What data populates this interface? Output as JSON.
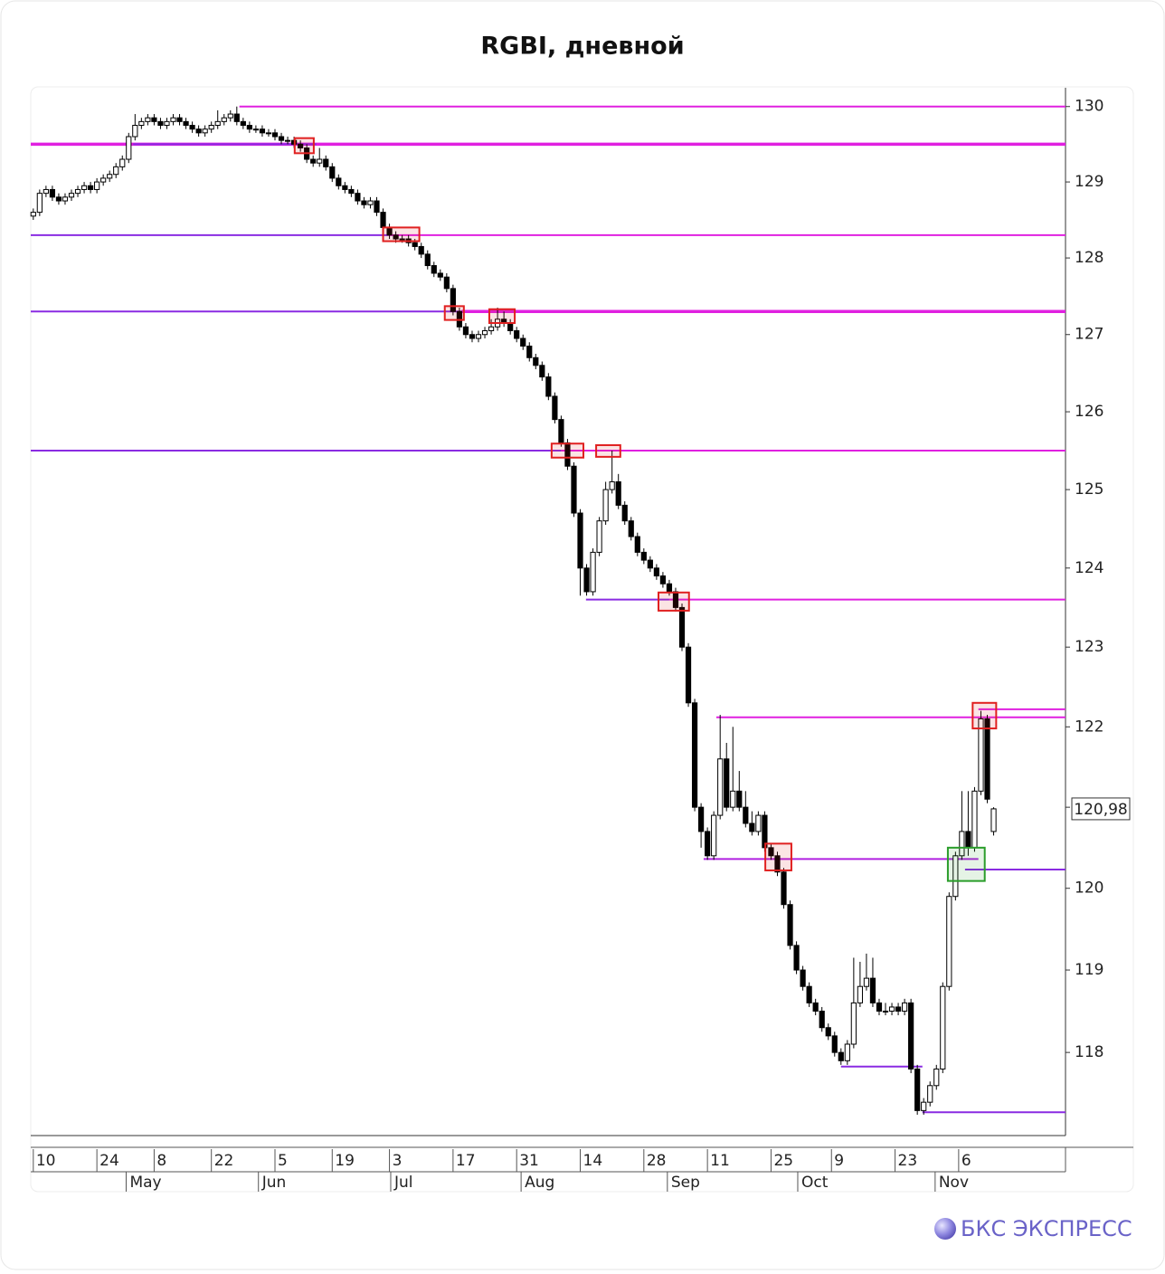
{
  "chart_data": {
    "type": "candlestick",
    "title": "RGBI, дневной",
    "log_scale": true,
    "ylim": [
      117.0,
      130.25
    ],
    "yticks": [
      118,
      119,
      120,
      121,
      122,
      123,
      124,
      125,
      126,
      127,
      128,
      129,
      130
    ],
    "xlim": [
      -0.4,
      162.3
    ],
    "xticks": [
      {
        "value": 0,
        "label": "10"
      },
      {
        "value": 10,
        "label": "24"
      },
      {
        "value": 19,
        "label": "8"
      },
      {
        "value": 28,
        "label": "22"
      },
      {
        "value": 38,
        "label": "5"
      },
      {
        "value": 47,
        "label": "19"
      },
      {
        "value": 56,
        "label": "3"
      },
      {
        "value": 66,
        "label": "17"
      },
      {
        "value": 76,
        "label": "31"
      },
      {
        "value": 86,
        "label": "14"
      },
      {
        "value": 96,
        "label": "28"
      },
      {
        "value": 106,
        "label": "11"
      },
      {
        "value": 116,
        "label": "25"
      },
      {
        "value": 125.5,
        "label": "9"
      },
      {
        "value": 135.5,
        "label": "23"
      },
      {
        "value": 145.5,
        "label": "6"
      }
    ],
    "months": [
      {
        "value": 14.6,
        "label": "May"
      },
      {
        "value": 35.4,
        "label": "Jun"
      },
      {
        "value": 56.2,
        "label": "Jul"
      },
      {
        "value": 76.7,
        "label": "Aug"
      },
      {
        "value": 99.7,
        "label": "Sep"
      },
      {
        "value": 120.2,
        "label": "Oct"
      },
      {
        "value": 141.8,
        "label": "Nov"
      }
    ],
    "up_color": "#ffffff",
    "down_color": "#000000",
    "candles": {
      "x": [
        0,
        1,
        2,
        3,
        4,
        5,
        6,
        7,
        8,
        9,
        10,
        11,
        12,
        13,
        14,
        15,
        16,
        17,
        18,
        19,
        20,
        21,
        22,
        23,
        24,
        25,
        26,
        27,
        28,
        29,
        30,
        31,
        32,
        33,
        34,
        35,
        36,
        37,
        38,
        39,
        40,
        41,
        42,
        43,
        44,
        45,
        46,
        47,
        48,
        49,
        50,
        51,
        52,
        53,
        54,
        55,
        56,
        57,
        58,
        59,
        60,
        61,
        62,
        63,
        64,
        65,
        66,
        67,
        68,
        69,
        70,
        71,
        72,
        73,
        74,
        75,
        76,
        77,
        78,
        79,
        80,
        81,
        82,
        83,
        84,
        85,
        86,
        87,
        88,
        89,
        90,
        91,
        92,
        93,
        94,
        95,
        96,
        97,
        98,
        99,
        100,
        101,
        102,
        103,
        104,
        105,
        106,
        107,
        108,
        109,
        110,
        111,
        112,
        113,
        114,
        115,
        116,
        117,
        118,
        119,
        120,
        121,
        122,
        123,
        124,
        125,
        126,
        127,
        128,
        129,
        130,
        131,
        132,
        133,
        134,
        135,
        136,
        137,
        138,
        139,
        140,
        141,
        142,
        143,
        144,
        145,
        146,
        147,
        148,
        149,
        150,
        151
      ],
      "open": [
        128.55,
        128.6,
        128.85,
        128.9,
        128.8,
        128.75,
        128.8,
        128.85,
        128.9,
        128.95,
        128.9,
        129.0,
        129.05,
        129.1,
        129.2,
        129.3,
        129.6,
        129.75,
        129.8,
        129.85,
        129.8,
        129.75,
        129.8,
        129.85,
        129.8,
        129.75,
        129.7,
        129.65,
        129.7,
        129.75,
        129.8,
        129.85,
        129.9,
        129.8,
        129.75,
        129.7,
        129.7,
        129.65,
        129.65,
        129.6,
        129.55,
        129.55,
        129.5,
        129.45,
        129.3,
        129.25,
        129.3,
        129.2,
        129.05,
        128.95,
        128.9,
        128.85,
        128.75,
        128.7,
        128.75,
        128.6,
        128.4,
        128.3,
        128.25,
        128.25,
        128.2,
        128.15,
        128.05,
        127.9,
        127.8,
        127.75,
        127.6,
        127.3,
        127.1,
        127.0,
        126.95,
        127.0,
        127.05,
        127.1,
        127.2,
        127.15,
        127.05,
        126.95,
        126.85,
        126.7,
        126.6,
        126.45,
        126.2,
        125.9,
        125.6,
        125.3,
        124.7,
        124.0,
        123.7,
        124.2,
        124.6,
        125.0,
        125.1,
        124.8,
        124.6,
        124.4,
        124.2,
        124.1,
        124.0,
        123.9,
        123.8,
        123.7,
        123.5,
        123.0,
        122.3,
        121.0,
        120.7,
        120.4,
        120.9,
        121.6,
        121.0,
        121.2,
        121.0,
        120.8,
        120.7,
        120.9,
        120.5,
        120.4,
        120.2,
        119.8,
        119.3,
        119.0,
        118.8,
        118.6,
        118.5,
        118.3,
        118.2,
        118.0,
        117.9,
        118.1,
        118.6,
        118.8,
        118.9,
        118.6,
        118.5,
        118.5,
        118.55,
        118.5,
        118.6,
        117.8,
        117.3,
        117.4,
        117.6,
        117.8,
        118.8,
        119.9,
        120.4,
        120.7,
        120.5,
        121.2,
        122.1,
        120.7
      ],
      "high": [
        128.65,
        128.9,
        128.95,
        128.95,
        128.85,
        128.85,
        128.9,
        128.95,
        129.0,
        129.0,
        129.05,
        129.1,
        129.15,
        129.25,
        129.35,
        129.65,
        129.9,
        129.85,
        129.9,
        129.9,
        129.85,
        129.85,
        129.9,
        129.9,
        129.85,
        129.8,
        129.75,
        129.75,
        129.8,
        129.95,
        129.9,
        129.95,
        130.0,
        129.85,
        129.8,
        129.75,
        129.75,
        129.7,
        129.7,
        129.65,
        129.6,
        129.6,
        129.55,
        129.5,
        129.35,
        129.45,
        129.35,
        129.25,
        129.1,
        129.0,
        128.95,
        128.9,
        128.8,
        128.8,
        128.8,
        128.65,
        128.45,
        128.35,
        128.3,
        128.3,
        128.25,
        128.2,
        128.1,
        127.95,
        127.85,
        127.8,
        127.65,
        127.35,
        127.15,
        127.05,
        127.05,
        127.1,
        127.2,
        127.35,
        127.3,
        127.2,
        127.1,
        127.0,
        126.9,
        126.75,
        126.65,
        126.5,
        126.25,
        125.95,
        125.65,
        125.35,
        124.75,
        124.05,
        124.25,
        124.65,
        125.1,
        125.5,
        125.2,
        124.85,
        124.65,
        124.45,
        124.25,
        124.15,
        124.05,
        123.95,
        123.85,
        123.75,
        123.55,
        123.05,
        122.35,
        121.05,
        120.75,
        120.95,
        122.15,
        121.8,
        122.0,
        121.45,
        121.2,
        120.95,
        120.95,
        120.95,
        120.55,
        120.45,
        120.25,
        119.85,
        119.35,
        119.05,
        118.85,
        118.65,
        118.55,
        118.35,
        118.25,
        118.05,
        118.15,
        119.15,
        119.1,
        119.2,
        119.15,
        118.65,
        118.6,
        118.6,
        118.6,
        118.65,
        118.65,
        117.85,
        117.45,
        117.65,
        117.85,
        118.85,
        119.95,
        120.45,
        121.2,
        121.2,
        121.25,
        122.2,
        122.15,
        121.0
      ],
      "low": [
        128.5,
        128.55,
        128.8,
        128.75,
        128.7,
        128.7,
        128.75,
        128.8,
        128.85,
        128.85,
        128.85,
        128.95,
        129.0,
        129.05,
        129.15,
        129.25,
        129.55,
        129.7,
        129.75,
        129.75,
        129.7,
        129.7,
        129.75,
        129.75,
        129.7,
        129.65,
        129.6,
        129.6,
        129.65,
        129.7,
        129.75,
        129.8,
        129.75,
        129.7,
        129.65,
        129.65,
        129.6,
        129.6,
        129.55,
        129.5,
        129.5,
        129.45,
        129.4,
        129.25,
        129.2,
        129.2,
        129.15,
        129.0,
        128.9,
        128.85,
        128.8,
        128.7,
        128.65,
        128.65,
        128.55,
        128.35,
        128.25,
        128.2,
        128.2,
        128.15,
        128.1,
        128.0,
        127.85,
        127.75,
        127.7,
        127.55,
        127.25,
        127.05,
        126.95,
        126.9,
        126.9,
        126.95,
        127.0,
        127.05,
        127.1,
        127.0,
        126.9,
        126.8,
        126.65,
        126.55,
        126.4,
        126.15,
        125.85,
        125.55,
        125.25,
        124.65,
        123.65,
        123.65,
        123.65,
        124.15,
        124.55,
        124.95,
        124.75,
        124.55,
        124.35,
        124.15,
        124.05,
        123.95,
        123.85,
        123.75,
        123.65,
        123.45,
        122.95,
        122.25,
        120.95,
        120.5,
        120.35,
        120.35,
        120.85,
        120.95,
        120.95,
        120.95,
        120.75,
        120.65,
        120.65,
        120.45,
        120.35,
        120.15,
        119.75,
        119.25,
        118.95,
        118.75,
        118.55,
        118.45,
        118.25,
        118.15,
        117.95,
        117.85,
        117.85,
        118.05,
        118.55,
        118.75,
        118.55,
        118.45,
        118.45,
        118.45,
        118.45,
        118.45,
        117.75,
        117.25,
        117.25,
        117.35,
        117.55,
        117.75,
        118.75,
        119.85,
        120.35,
        120.4,
        120.45,
        121.15,
        121.05,
        120.65
      ],
      "close": [
        128.6,
        128.85,
        128.9,
        128.8,
        128.75,
        128.8,
        128.85,
        128.9,
        128.95,
        128.9,
        129.0,
        129.05,
        129.1,
        129.2,
        129.3,
        129.6,
        129.75,
        129.8,
        129.85,
        129.8,
        129.75,
        129.8,
        129.85,
        129.8,
        129.75,
        129.7,
        129.65,
        129.7,
        129.75,
        129.8,
        129.85,
        129.9,
        129.8,
        129.75,
        129.7,
        129.7,
        129.65,
        129.65,
        129.6,
        129.55,
        129.55,
        129.5,
        129.45,
        129.3,
        129.25,
        129.3,
        129.2,
        129.05,
        128.95,
        128.9,
        128.85,
        128.75,
        128.7,
        128.75,
        128.6,
        128.4,
        128.3,
        128.25,
        128.25,
        128.2,
        128.15,
        128.05,
        127.9,
        127.8,
        127.75,
        127.6,
        127.3,
        127.1,
        127.0,
        126.95,
        127.0,
        127.05,
        127.1,
        127.2,
        127.15,
        127.05,
        126.95,
        126.85,
        126.7,
        126.6,
        126.45,
        126.2,
        125.9,
        125.6,
        125.3,
        124.7,
        124.0,
        123.7,
        124.2,
        124.6,
        125.0,
        125.1,
        124.8,
        124.6,
        124.4,
        124.2,
        124.1,
        124.0,
        123.9,
        123.8,
        123.7,
        123.5,
        123.0,
        122.3,
        121.0,
        120.7,
        120.4,
        120.9,
        121.6,
        121.0,
        121.2,
        121.0,
        120.8,
        120.7,
        120.9,
        120.5,
        120.4,
        120.2,
        119.8,
        119.3,
        119.0,
        118.8,
        118.6,
        118.5,
        118.3,
        118.2,
        118.0,
        117.9,
        118.1,
        118.6,
        118.8,
        118.9,
        118.6,
        118.5,
        118.5,
        118.55,
        118.5,
        118.6,
        117.8,
        117.3,
        117.4,
        117.6,
        117.8,
        118.8,
        119.9,
        120.4,
        120.7,
        120.5,
        121.2,
        122.1,
        121.1,
        120.98
      ]
    },
    "levels": [
      {
        "value": 130.0,
        "from": 32.4,
        "to": 162.3,
        "color": "#e020e0"
      },
      {
        "value": 129.5,
        "from": -0.4,
        "to": 162.3,
        "color": "#e020e0",
        "thick": true
      },
      {
        "value": 129.5,
        "from": 15.7,
        "to": 44.5,
        "color": "#8a2be2"
      },
      {
        "value": 128.3,
        "from": -0.4,
        "to": 55.9,
        "color": "#8a2be2"
      },
      {
        "value": 128.3,
        "from": 55.9,
        "to": 162.3,
        "color": "#e020e0"
      },
      {
        "value": 127.3,
        "from": -0.4,
        "to": 67.3,
        "color": "#8a2be2"
      },
      {
        "value": 127.3,
        "from": 67.3,
        "to": 162.3,
        "color": "#e020e0",
        "thick": true
      },
      {
        "value": 125.5,
        "from": -0.4,
        "to": 83.0,
        "color": "#8a2be2"
      },
      {
        "value": 125.5,
        "from": 83.0,
        "to": 162.3,
        "color": "#e020e0"
      },
      {
        "value": 123.6,
        "from": 86.9,
        "to": 100.0,
        "color": "#8a2be2"
      },
      {
        "value": 123.6,
        "from": 100.0,
        "to": 162.3,
        "color": "#e020e0"
      },
      {
        "value": 122.12,
        "from": 107.4,
        "to": 162.3,
        "color": "#e020e0"
      },
      {
        "value": 122.22,
        "from": 148.6,
        "to": 162.3,
        "color": "#e020e0"
      },
      {
        "value": 120.36,
        "from": 105.4,
        "to": 148.6,
        "color": "#b020e0"
      },
      {
        "value": 120.23,
        "from": 146.5,
        "to": 162.3,
        "color": "#8a2be2"
      },
      {
        "value": 117.83,
        "from": 127.0,
        "to": 139.8,
        "color": "#8a2be2"
      },
      {
        "value": 117.28,
        "from": 139.8,
        "to": 162.3,
        "color": "#8a2be2"
      }
    ],
    "boxes": [
      {
        "x": [
          41.1,
          44.1
        ],
        "y": [
          129.38,
          129.58
        ],
        "color": "#e02020"
      },
      {
        "x": [
          55.0,
          60.7
        ],
        "y": [
          128.22,
          128.4
        ],
        "color": "#e02020"
      },
      {
        "x": [
          64.7,
          67.7
        ],
        "y": [
          127.19,
          127.37
        ],
        "color": "#e02020"
      },
      {
        "x": [
          71.7,
          75.7
        ],
        "y": [
          127.15,
          127.33
        ],
        "color": "#e02020"
      },
      {
        "x": [
          81.5,
          86.5
        ],
        "y": [
          125.41,
          125.59
        ],
        "color": "#e02020"
      },
      {
        "x": [
          88.5,
          92.3
        ],
        "y": [
          125.42,
          125.57
        ],
        "color": "#e02020"
      },
      {
        "x": [
          98.3,
          103.1
        ],
        "y": [
          123.46,
          123.69
        ],
        "color": "#e02020"
      },
      {
        "x": [
          115.1,
          119.2
        ],
        "y": [
          120.22,
          120.55
        ],
        "color": "#e02020"
      },
      {
        "x": [
          147.7,
          151.4
        ],
        "y": [
          121.98,
          122.3
        ],
        "color": "#e02020"
      },
      {
        "x": [
          143.8,
          149.6
        ],
        "y": [
          120.09,
          120.5
        ],
        "color": "#2a9d2a"
      }
    ],
    "last_price": {
      "value": 120.98,
      "label": "120,98"
    }
  },
  "brand": "БКС ЭКСПРЕСС"
}
